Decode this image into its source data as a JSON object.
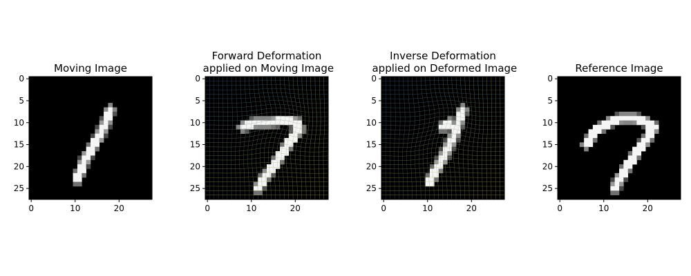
{
  "chart_data": [
    {
      "type": "heatmap",
      "title": "Moving Image",
      "xlabel": "",
      "ylabel": "",
      "x_ticks": [
        0,
        10,
        20
      ],
      "y_ticks": [
        0,
        5,
        10,
        15,
        20,
        25
      ],
      "xlim": [
        -0.5,
        27.5
      ],
      "ylim": [
        27.5,
        -0.5
      ],
      "colormap": "gray",
      "deformation_grid": false,
      "digit": "1"
    },
    {
      "type": "heatmap",
      "title": "Forward Deformation\n applied on Moving Image",
      "xlabel": "",
      "ylabel": "",
      "x_ticks": [
        0,
        10,
        20
      ],
      "y_ticks": [
        0,
        5,
        10,
        15,
        20,
        25
      ],
      "xlim": [
        -0.5,
        27.5
      ],
      "ylim": [
        27.5,
        -0.5
      ],
      "colormap": "gray",
      "deformation_grid": true,
      "digit": "7"
    },
    {
      "type": "heatmap",
      "title": "Inverse Deformation\n applied on Deformed Image",
      "xlabel": "",
      "ylabel": "",
      "x_ticks": [
        0,
        10,
        20
      ],
      "y_ticks": [
        0,
        5,
        10,
        15,
        20,
        25
      ],
      "xlim": [
        -0.5,
        27.5
      ],
      "ylim": [
        27.5,
        -0.5
      ],
      "colormap": "gray",
      "deformation_grid": true,
      "digit": "1"
    },
    {
      "type": "heatmap",
      "title": "Reference Image",
      "xlabel": "",
      "ylabel": "",
      "x_ticks": [
        0,
        10,
        20
      ],
      "y_ticks": [
        0,
        5,
        10,
        15,
        20,
        25
      ],
      "xlim": [
        -0.5,
        27.5
      ],
      "ylim": [
        27.5,
        -0.5
      ],
      "colormap": "gray",
      "deformation_grid": false,
      "digit": "7"
    }
  ]
}
